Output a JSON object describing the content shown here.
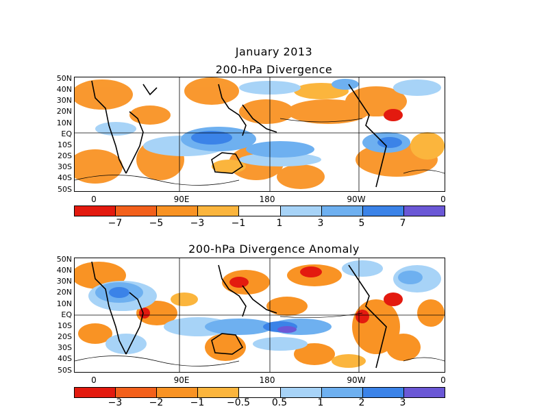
{
  "title_line1": "January 2013",
  "panels": [
    {
      "title": "200-hPa Divergence",
      "lat_labels": [
        "50N",
        "40N",
        "30N",
        "20N",
        "10N",
        "EQ",
        "10S",
        "20S",
        "30S",
        "40S",
        "50S"
      ],
      "lon_labels": [
        "0",
        "90E",
        "180",
        "90W",
        "0"
      ],
      "colorbar": {
        "labels": [
          "−7",
          "−5",
          "−3",
          "−1",
          "1",
          "3",
          "5",
          "7"
        ],
        "colors": [
          "#e31a0f",
          "#f3601b",
          "#f99324",
          "#fbb53d",
          "#ffffff",
          "#a7d3f7",
          "#6eb0f0",
          "#3b83e8",
          "#1f5fd9",
          "#6b58d6"
        ]
      }
    },
    {
      "title": "200-hPa Divergence Anomaly",
      "lat_labels": [
        "50N",
        "40N",
        "30N",
        "20N",
        "10N",
        "EQ",
        "10S",
        "20S",
        "30S",
        "40S",
        "50S"
      ],
      "lon_labels": [
        "0",
        "90E",
        "180",
        "90W",
        "0"
      ],
      "colorbar": {
        "labels": [
          "−3",
          "−2",
          "−1",
          "−0.5",
          "0.5",
          "1",
          "2",
          "3"
        ],
        "colors": [
          "#e31a0f",
          "#f3601b",
          "#f99324",
          "#fbb53d",
          "#ffffff",
          "#a7d3f7",
          "#6eb0f0",
          "#3b83e8",
          "#1f5fd9",
          "#6b58d6"
        ]
      }
    }
  ],
  "legend": {
    "positive_color": "#f99324",
    "negative_color": "#6eb0f0"
  }
}
